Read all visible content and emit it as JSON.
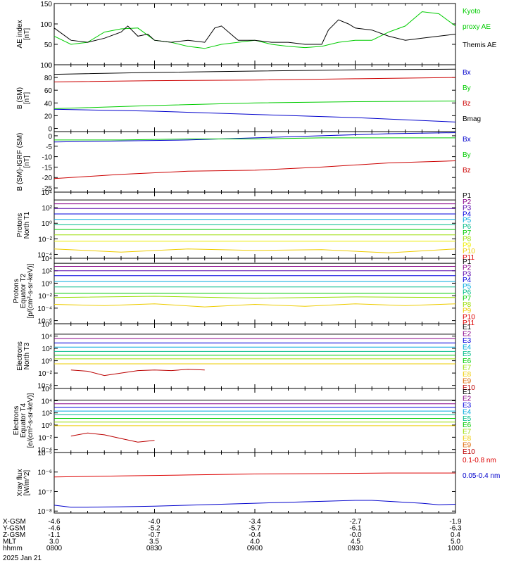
{
  "chart_data": [
    {
      "type": "line",
      "ylabel": [
        "AE index",
        "[nT]"
      ],
      "yticks": [
        0,
        50,
        100,
        150
      ],
      "ylim": [
        0,
        150
      ],
      "log": false,
      "series": [
        {
          "name": "Kyoto proxy AE",
          "name_lines": [
            "Kyoto",
            "proxy AE"
          ],
          "color": "#00cc00",
          "x": [
            0,
            5,
            10,
            15,
            20,
            25,
            30,
            35,
            40,
            45,
            50,
            55,
            60,
            65,
            70,
            75,
            80,
            85,
            90,
            95,
            100,
            105,
            110,
            115,
            120
          ],
          "y": [
            70,
            50,
            55,
            80,
            88,
            90,
            60,
            55,
            45,
            40,
            50,
            55,
            60,
            50,
            45,
            42,
            45,
            55,
            60,
            60,
            80,
            95,
            130,
            125,
            95
          ]
        },
        {
          "name": "Themis AE",
          "color": "#000000",
          "x": [
            0,
            5,
            10,
            15,
            20,
            22,
            25,
            28,
            30,
            35,
            40,
            45,
            48,
            50,
            55,
            60,
            65,
            70,
            75,
            80,
            82,
            85,
            88,
            90,
            95,
            100,
            105,
            110,
            115,
            120
          ],
          "y": [
            90,
            60,
            55,
            65,
            80,
            95,
            70,
            75,
            60,
            55,
            60,
            55,
            90,
            95,
            60,
            60,
            55,
            55,
            50,
            50,
            85,
            110,
            100,
            90,
            85,
            70,
            60,
            65,
            70,
            75
          ]
        }
      ]
    },
    {
      "type": "line",
      "ylabel": [
        "B (SM)",
        "[nT]"
      ],
      "yticks": [
        0,
        20,
        40,
        60,
        80,
        100
      ],
      "ylim": [
        -5,
        100
      ],
      "log": false,
      "series": [
        {
          "name": "Bx",
          "color": "#0000cc",
          "x": [
            0,
            30,
            60,
            90,
            120
          ],
          "y": [
            30,
            27,
            22,
            17,
            10
          ]
        },
        {
          "name": "By",
          "color": "#00cc00",
          "x": [
            0,
            30,
            60,
            90,
            120
          ],
          "y": [
            31,
            36,
            40,
            42,
            43
          ]
        },
        {
          "name": "Bz",
          "color": "#cc0000",
          "x": [
            0,
            30,
            60,
            90,
            120
          ],
          "y": [
            73,
            75,
            76,
            78,
            80
          ]
        },
        {
          "name": "Bmag",
          "color": "#000000",
          "x": [
            0,
            30,
            60,
            90,
            120
          ],
          "y": [
            85,
            88,
            90,
            92,
            93
          ]
        }
      ]
    },
    {
      "type": "line",
      "ylabel": [
        "B (SM)-IGRF (SM)",
        "[nT]"
      ],
      "yticks": [
        -25,
        -20,
        -15,
        -10,
        -5,
        0
      ],
      "ylim": [
        -27,
        2
      ],
      "log": false,
      "series": [
        {
          "name": "Bx",
          "color": "#0000cc",
          "x": [
            0,
            20,
            40,
            60,
            80,
            100,
            120
          ],
          "y": [
            -3,
            -2.5,
            -2,
            -1,
            0,
            1,
            1.5
          ]
        },
        {
          "name": "By",
          "color": "#00cc00",
          "x": [
            0,
            20,
            40,
            60,
            80,
            100,
            120
          ],
          "y": [
            -2,
            -2,
            -1.5,
            -1.5,
            -1,
            -1,
            -1
          ]
        },
        {
          "name": "Bz",
          "color": "#cc0000",
          "x": [
            0,
            20,
            40,
            60,
            80,
            100,
            120
          ],
          "y": [
            -20.5,
            -18.5,
            -17,
            -16.5,
            -15,
            -13,
            -12
          ]
        }
      ]
    },
    {
      "type": "line",
      "ylabel": [
        "Protons",
        "North T1"
      ],
      "yticks": [
        -4,
        -2,
        0,
        2,
        4
      ],
      "yticklabels": [
        "10⁻⁴",
        "10⁻²",
        "10⁰",
        "10²",
        "10⁴"
      ],
      "ylim": [
        -4.5,
        4
      ],
      "log": true,
      "series": [
        {
          "name": "P1",
          "color": "#000000",
          "x": [
            0,
            120
          ],
          "y": [
            3.0,
            3.0
          ]
        },
        {
          "name": "P2",
          "color": "#880088",
          "x": [
            0,
            120
          ],
          "y": [
            2.5,
            2.5
          ]
        },
        {
          "name": "P3",
          "color": "#5500aa",
          "x": [
            0,
            120
          ],
          "y": [
            1.9,
            1.9
          ]
        },
        {
          "name": "P4",
          "color": "#0000dd",
          "x": [
            0,
            120
          ],
          "y": [
            1.2,
            1.2
          ]
        },
        {
          "name": "P5",
          "color": "#00aadd",
          "x": [
            0,
            120
          ],
          "y": [
            0.5,
            0.5
          ]
        },
        {
          "name": "P6",
          "color": "#00bb88",
          "x": [
            0,
            120
          ],
          "y": [
            -0.2,
            -0.2
          ]
        },
        {
          "name": "P7",
          "color": "#00cc00",
          "x": [
            0,
            120
          ],
          "y": [
            -0.8,
            -0.8
          ]
        },
        {
          "name": "P8",
          "color": "#99dd00",
          "x": [
            0,
            120
          ],
          "y": [
            -1.5,
            -1.5
          ]
        },
        {
          "name": "P9",
          "color": "#eeee00",
          "x": [
            0,
            120
          ],
          "y": [
            -2.3,
            -2.3
          ]
        },
        {
          "name": "P10",
          "color": "#eecc00",
          "x": [
            0,
            20,
            40,
            60,
            80,
            100,
            120
          ],
          "y": [
            -3.3,
            -3.7,
            -3.3,
            -3.5,
            -3.4,
            -3.8,
            -3.3
          ]
        },
        {
          "name": "P11",
          "color": "#dd0000",
          "x": [],
          "y": []
        }
      ]
    },
    {
      "type": "line",
      "ylabel": [
        "Protons",
        "Equator T2",
        "[p/(cm²-s-sr-keV)]"
      ],
      "yticks": [
        -6,
        -4,
        -2,
        0,
        2,
        4
      ],
      "yticklabels": [
        "10⁻⁶",
        "10⁻⁴",
        "10⁻²",
        "10⁰",
        "10²",
        "10⁴"
      ],
      "ylim": [
        -6.5,
        4
      ],
      "log": true,
      "series": [
        {
          "name": "P1",
          "color": "#000000",
          "x": [
            0,
            120
          ],
          "y": [
            3.2,
            3.2
          ]
        },
        {
          "name": "P2",
          "color": "#880088",
          "x": [
            0,
            120
          ],
          "y": [
            2.7,
            2.7
          ]
        },
        {
          "name": "P3",
          "color": "#5500aa",
          "x": [
            0,
            120
          ],
          "y": [
            2.0,
            2.0
          ]
        },
        {
          "name": "P4",
          "color": "#0000dd",
          "x": [
            0,
            120
          ],
          "y": [
            1.2,
            1.2
          ]
        },
        {
          "name": "P5",
          "color": "#00aadd",
          "x": [
            0,
            120
          ],
          "y": [
            0.3,
            0.3
          ]
        },
        {
          "name": "P6",
          "color": "#00bb88",
          "x": [
            0,
            120
          ],
          "y": [
            -0.6,
            -0.6
          ]
        },
        {
          "name": "P7",
          "color": "#00cc00",
          "x": [
            0,
            120
          ],
          "y": [
            -1.6,
            -1.6
          ]
        },
        {
          "name": "P8",
          "color": "#99dd00",
          "x": [
            0,
            30,
            60,
            90,
            120
          ],
          "y": [
            -2.3,
            -2.1,
            -2.4,
            -2.2,
            -2.3
          ]
        },
        {
          "name": "P9",
          "color": "#eecc00",
          "x": [
            0,
            15,
            30,
            45,
            60,
            75,
            90,
            105,
            120
          ],
          "y": [
            -3.4,
            -3.6,
            -3.3,
            -3.8,
            -3.4,
            -3.7,
            -3.3,
            -3.6,
            -3.3
          ]
        },
        {
          "name": "P10",
          "color": "#dd0000",
          "x": [],
          "y": []
        },
        {
          "name": "P11",
          "color": "#dd0000",
          "x": [],
          "y": []
        }
      ]
    },
    {
      "type": "line",
      "ylabel": [
        "Electrons",
        "North T3"
      ],
      "yticks": [
        -4,
        -2,
        0,
        2,
        4,
        6
      ],
      "yticklabels": [
        "10⁻⁴",
        "10⁻²",
        "10⁰",
        "10²",
        "10⁴",
        "10⁶"
      ],
      "ylim": [
        -4.5,
        6
      ],
      "log": true,
      "series": [
        {
          "name": "E1",
          "color": "#000000",
          "x": [
            0,
            120
          ],
          "y": [
            4.3,
            4.3
          ]
        },
        {
          "name": "E2",
          "color": "#880088",
          "x": [
            0,
            120
          ],
          "y": [
            3.6,
            3.6
          ]
        },
        {
          "name": "E3",
          "color": "#0000dd",
          "x": [
            0,
            120
          ],
          "y": [
            2.9,
            2.9
          ]
        },
        {
          "name": "E4",
          "color": "#00aadd",
          "x": [
            0,
            120
          ],
          "y": [
            2.2,
            2.2
          ]
        },
        {
          "name": "E5",
          "color": "#00bb88",
          "x": [
            0,
            120
          ],
          "y": [
            1.5,
            1.5
          ]
        },
        {
          "name": "E6",
          "color": "#00cc00",
          "x": [
            0,
            120
          ],
          "y": [
            0.9,
            0.9
          ]
        },
        {
          "name": "E7",
          "color": "#99dd00",
          "x": [
            0,
            120
          ],
          "y": [
            0.3,
            0.3
          ]
        },
        {
          "name": "E8",
          "color": "#eecc00",
          "x": [
            0,
            120
          ],
          "y": [
            -0.5,
            -0.5
          ]
        },
        {
          "name": "E9",
          "color": "#dd6600",
          "x": [],
          "y": []
        },
        {
          "name": "E10",
          "color": "#bb0000",
          "x": [
            5,
            10,
            15,
            20,
            25,
            30,
            35,
            40,
            45
          ],
          "y": [
            -1.5,
            -1.7,
            -2.4,
            -2.0,
            -1.6,
            -1.5,
            -1.6,
            -1.4,
            -1.5
          ]
        }
      ]
    },
    {
      "type": "line",
      "ylabel": [
        "Electrons",
        "Equator T4",
        "[e/(cm²-s-sr-keV)]"
      ],
      "yticks": [
        -4,
        -2,
        0,
        2,
        4,
        6
      ],
      "yticklabels": [
        "10⁻⁴",
        "10⁻²",
        "10⁰",
        "10²",
        "10⁴",
        "10⁶"
      ],
      "ylim": [
        -4.5,
        6
      ],
      "log": true,
      "series": [
        {
          "name": "E1",
          "color": "#000000",
          "x": [
            0,
            120
          ],
          "y": [
            4.1,
            4.1
          ]
        },
        {
          "name": "E2",
          "color": "#880088",
          "x": [
            0,
            120
          ],
          "y": [
            3.5,
            3.5
          ]
        },
        {
          "name": "E3",
          "color": "#0000dd",
          "x": [
            0,
            120
          ],
          "y": [
            2.9,
            2.9
          ]
        },
        {
          "name": "E4",
          "color": "#00aadd",
          "x": [
            0,
            120
          ],
          "y": [
            2.3,
            2.3
          ]
        },
        {
          "name": "E5",
          "color": "#00bb88",
          "x": [
            0,
            120
          ],
          "y": [
            1.7,
            1.7
          ]
        },
        {
          "name": "E6",
          "color": "#00cc00",
          "x": [
            0,
            120
          ],
          "y": [
            1.1,
            1.1
          ]
        },
        {
          "name": "E7",
          "color": "#99dd00",
          "x": [
            0,
            120
          ],
          "y": [
            0.5,
            0.5
          ]
        },
        {
          "name": "E8",
          "color": "#eecc00",
          "x": [
            0,
            120
          ],
          "y": [
            -0.1,
            -0.1
          ]
        },
        {
          "name": "E9",
          "color": "#dd6600",
          "x": [],
          "y": []
        },
        {
          "name": "E10",
          "color": "#bb0000",
          "x": [
            5,
            10,
            15,
            20,
            25,
            30
          ],
          "y": [
            -1.8,
            -1.3,
            -1.6,
            -2.2,
            -2.8,
            -2.5
          ]
        }
      ]
    },
    {
      "type": "line",
      "ylabel": [
        "Xray flux",
        "[W/m^2]"
      ],
      "yticks": [
        -8,
        -7,
        -6,
        -5
      ],
      "yticklabels": [
        "10⁻⁸",
        "10⁻⁷",
        "10⁻⁶",
        "10⁻⁵"
      ],
      "ylim": [
        -8.1,
        -5
      ],
      "log": true,
      "series": [
        {
          "name": "0.1-0.8 nm",
          "color": "#dd0000",
          "x": [
            0,
            20,
            40,
            60,
            80,
            100,
            120
          ],
          "y": [
            -6.25,
            -6.2,
            -6.15,
            -6.1,
            -6.08,
            -6.05,
            -6.05
          ]
        },
        {
          "name": "0.05-0.4 nm",
          "color": "#0000cc",
          "x": [
            0,
            5,
            10,
            20,
            30,
            40,
            50,
            60,
            70,
            80,
            90,
            95,
            100,
            105,
            110,
            115,
            120
          ],
          "y": [
            -7.7,
            -7.8,
            -7.8,
            -7.78,
            -7.75,
            -7.7,
            -7.65,
            -7.6,
            -7.55,
            -7.5,
            -7.45,
            -7.45,
            -7.5,
            -7.55,
            -7.6,
            -7.68,
            -7.65
          ]
        }
      ]
    }
  ],
  "axis_table": {
    "rows": [
      {
        "label": "X-GSM",
        "values": [
          "-4.6",
          "-4.0",
          "-3.4",
          "-2.7",
          "-1.9"
        ]
      },
      {
        "label": "Y-GSM",
        "values": [
          "-4.6",
          "-5.2",
          "-5.7",
          "-6.1",
          "-6.3"
        ]
      },
      {
        "label": "Z-GSM",
        "values": [
          "-1.1",
          "-0.7",
          "-0.4",
          "-0.0",
          "0.4"
        ]
      },
      {
        "label": "MLT",
        "values": [
          "3.0",
          "3.5",
          "4.0",
          "4.5",
          "5.0"
        ]
      },
      {
        "label": "hhmm",
        "values": [
          "0800",
          "0830",
          "0900",
          "0930",
          "1000"
        ]
      }
    ],
    "date": "2025 Jan 21"
  }
}
